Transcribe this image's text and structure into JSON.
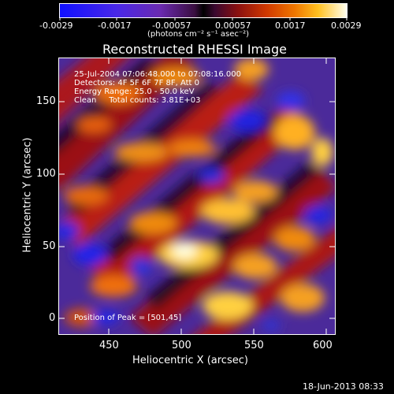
{
  "colorbar": {
    "ticks": [
      "-0.0029",
      "-0.0017",
      "-0.00057",
      "0.00057",
      "0.0017",
      "0.0029"
    ],
    "units": "(photons cm⁻² s⁻¹ asec⁻²)"
  },
  "plot": {
    "title": "Reconstructed RHESSI Image",
    "x_label": "Heliocentric X (arcsec)",
    "y_label": "Heliocentric Y (arcsec)",
    "x_ticks": [
      "450",
      "500",
      "550",
      "600"
    ],
    "y_ticks": [
      "0",
      "50",
      "100",
      "150"
    ]
  },
  "overlay": {
    "time_range": "25-Jul-2004 07:06:48.000 to 07:08:16.000",
    "detectors": "Detectors: 4F 5F 6F 7F 8F, Att 0",
    "energy": "Energy Range: 25.0 - 50.0 keV",
    "method": "Clean     Total counts: 3.81E+03",
    "peak": "Position of Peak = [501,45]"
  },
  "footer": {
    "timestamp": "18-Jun-2013 08:33"
  },
  "colors": {
    "background": "#000000",
    "cmap_low": "#1010ff",
    "cmap_mid": "#000000",
    "cmap_high": "#fffff0"
  }
}
